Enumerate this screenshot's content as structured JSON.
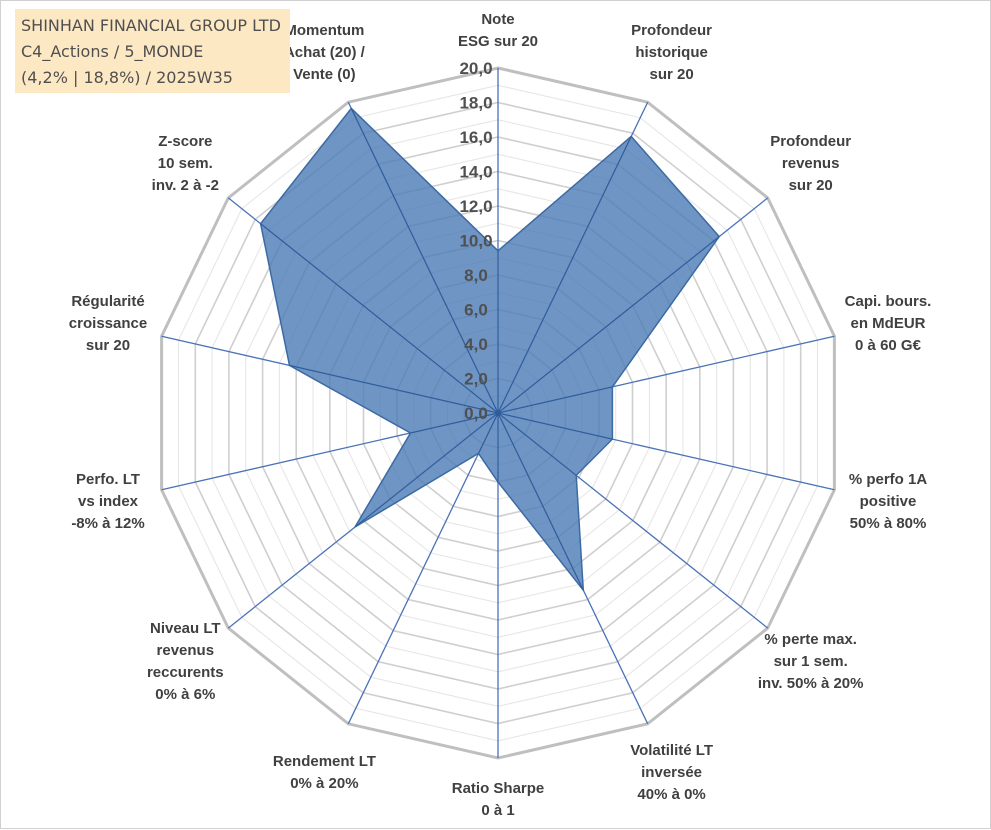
{
  "header": {
    "line1": "SHINHAN FINANCIAL GROUP LTD",
    "line2": "C4_Actions / 5_MONDE",
    "line3": "(4,2% | 18,8%) / 2025W35"
  },
  "chart_data": {
    "type": "radar",
    "title": "SHINHAN FINANCIAL GROUP LTD",
    "rlim": [
      0,
      20
    ],
    "ticks": [
      "0,0",
      "2,0",
      "4,0",
      "6,0",
      "8,0",
      "10,0",
      "12,0",
      "14,0",
      "16,0",
      "18,0",
      "20,0"
    ],
    "grid": true,
    "legend": "none",
    "colors": {
      "fill": "#4a7bb5",
      "stroke": "#3c6aa3",
      "spoke": "#4a72b8",
      "ring": "#d9d9d9",
      "outer_ring": "#bfbfbf"
    },
    "axes": [
      {
        "label": [
          "Note",
          "ESG sur 20"
        ],
        "value": 9.4
      },
      {
        "label": [
          "Profondeur",
          "historique",
          "sur 20"
        ],
        "value": 17.8
      },
      {
        "label": [
          "Profondeur",
          "revenus",
          "sur 20"
        ],
        "value": 16.4
      },
      {
        "label": [
          "Capi. bours.",
          "en MdEUR",
          "0 à 60 G€"
        ],
        "value": 6.8
      },
      {
        "label": [
          "% perfo 1A",
          "positive",
          "50% à 80%"
        ],
        "value": 6.8
      },
      {
        "label": [
          "% perte max.",
          "sur 1 sem.",
          "inv. 50% à 20%"
        ],
        "value": 5.8
      },
      {
        "label": [
          "Volatilité LT",
          "inversée",
          "40% à 0%"
        ],
        "value": 11.4
      },
      {
        "label": [
          "Ratio Sharpe",
          "0 à 1"
        ],
        "value": 4.0
      },
      {
        "label": [
          "Rendement LT",
          "0% à 20%"
        ],
        "value": 2.6
      },
      {
        "label": [
          "Niveau LT",
          "revenus",
          "reccurents",
          "0% à 6%"
        ],
        "value": 10.6
      },
      {
        "label": [
          "Perfo. LT",
          "vs index",
          "-8% à 12%"
        ],
        "value": 5.2
      },
      {
        "label": [
          "Régularité",
          "croissance",
          "sur 20"
        ],
        "value": 12.4
      },
      {
        "label": [
          "Z-score",
          "10 sem.",
          "inv. 2 à -2"
        ],
        "value": 17.6
      },
      {
        "label": [
          "Momentum",
          "Achat (20) /",
          "Vente (0)"
        ],
        "value": 19.6
      }
    ]
  }
}
